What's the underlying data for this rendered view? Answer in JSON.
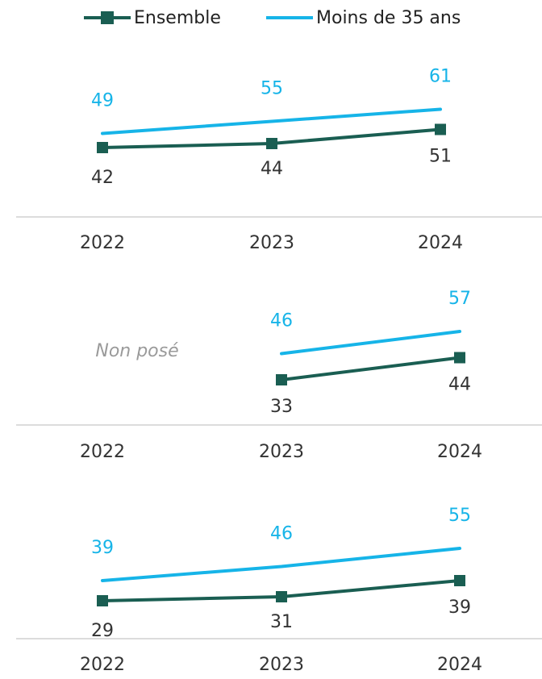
{
  "colors": {
    "ensemble": "#1a5e52",
    "moins35": "#16b4e8",
    "axis": "#d0d0d0",
    "tick": "#333333",
    "note": "#9a9a9a"
  },
  "legend": [
    {
      "name": "Ensemble",
      "color": "#1a5e52",
      "marker": "square"
    },
    {
      "name": "Moins de 35 ans",
      "color": "#16b4e8",
      "marker": "none"
    }
  ],
  "chart_data": [
    {
      "type": "line",
      "categories": [
        "2022",
        "2023",
        "2024"
      ],
      "series": [
        {
          "name": "Ensemble",
          "values": [
            42,
            44,
            51
          ]
        },
        {
          "name": "Moins de 35 ans",
          "values": [
            49,
            55,
            61
          ]
        }
      ],
      "note": ""
    },
    {
      "type": "line",
      "categories": [
        "2022",
        "2023",
        "2024"
      ],
      "series": [
        {
          "name": "Ensemble",
          "values": [
            null,
            33,
            44
          ]
        },
        {
          "name": "Moins de 35 ans",
          "values": [
            null,
            46,
            57
          ]
        }
      ],
      "note": "Non posé"
    },
    {
      "type": "line",
      "categories": [
        "2022",
        "2023",
        "2024"
      ],
      "series": [
        {
          "name": "Ensemble",
          "values": [
            29,
            31,
            39
          ]
        },
        {
          "name": "Moins de 35 ans",
          "values": [
            39,
            46,
            55
          ]
        }
      ],
      "note": ""
    }
  ]
}
